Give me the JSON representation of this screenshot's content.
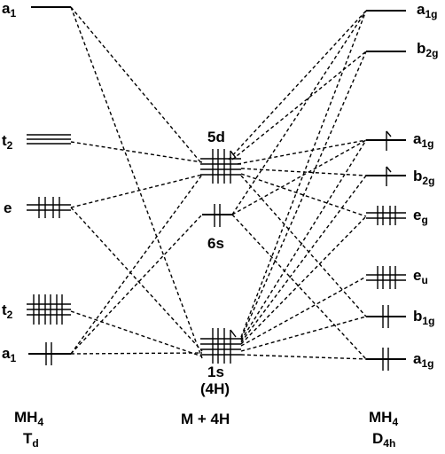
{
  "left": {
    "levels": [
      {
        "label": "a",
        "sub": "1"
      },
      {
        "label": "t",
        "sub": "2"
      },
      {
        "label": "e",
        "sub": ""
      },
      {
        "label": "t",
        "sub": "2"
      },
      {
        "label": "a",
        "sub": "1"
      }
    ],
    "footer": {
      "line1": "MH",
      "line1_sub": "4",
      "line2": "T",
      "line2_sub": "d"
    }
  },
  "center": {
    "top_label": "5d",
    "mid_label": "6s",
    "bottom_label": "1s",
    "bottom_label2": "(4H)",
    "footer": "M + 4H"
  },
  "right": {
    "levels": [
      {
        "label": "a",
        "sub": "1g"
      },
      {
        "label": "b",
        "sub": "2g"
      },
      {
        "label": "a",
        "sub": "1g"
      },
      {
        "label": "b",
        "sub": "2g"
      },
      {
        "label": "e",
        "sub": "g"
      },
      {
        "label": "e",
        "sub": "u"
      },
      {
        "label": "b",
        "sub": "1g"
      },
      {
        "label": "a",
        "sub": "1g"
      }
    ],
    "footer": {
      "line1": "MH",
      "line1_sub": "4",
      "line2": "D",
      "line2_sub": "4h"
    }
  }
}
